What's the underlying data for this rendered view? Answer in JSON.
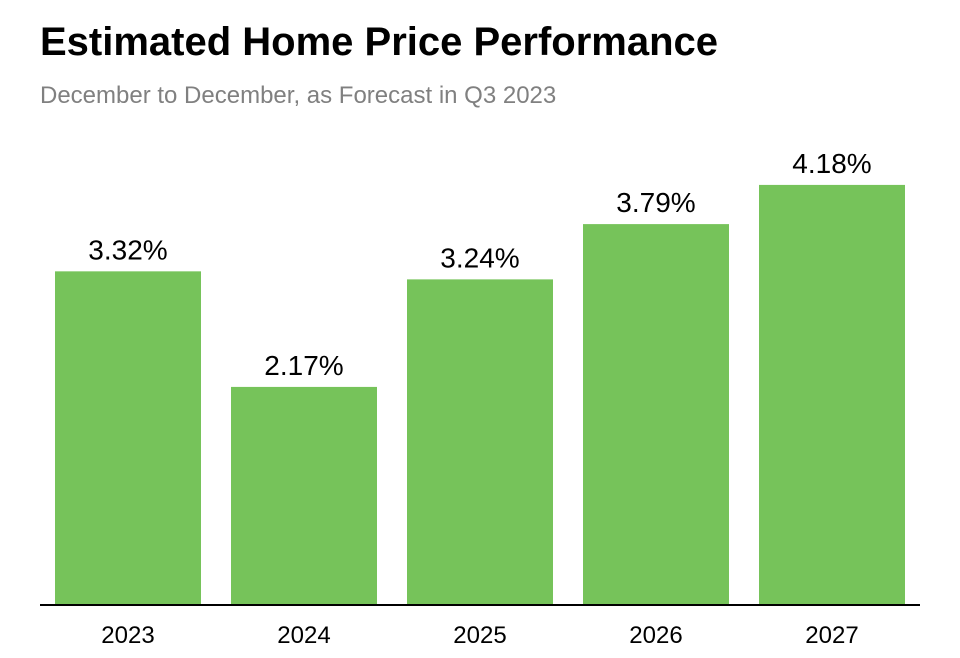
{
  "header": {
    "title": "Estimated Home Price Performance",
    "subtitle": "December to December, as Forecast in Q3 2023"
  },
  "chart_data": {
    "type": "bar",
    "title": "Estimated Home Price Performance",
    "subtitle": "December to December, as Forecast in Q3 2023",
    "categories": [
      "2023",
      "2024",
      "2025",
      "2026",
      "2027"
    ],
    "values": [
      3.32,
      2.17,
      3.24,
      3.79,
      4.18
    ],
    "value_labels": [
      "3.32%",
      "2.17%",
      "3.24%",
      "3.79%",
      "4.18%"
    ],
    "xlabel": "",
    "ylabel": "",
    "ylim": [
      0,
      6
    ],
    "grid": false,
    "legend": "none",
    "colors": {
      "bar": "#76C35A",
      "axis": "#000000",
      "label": "#000000"
    }
  }
}
